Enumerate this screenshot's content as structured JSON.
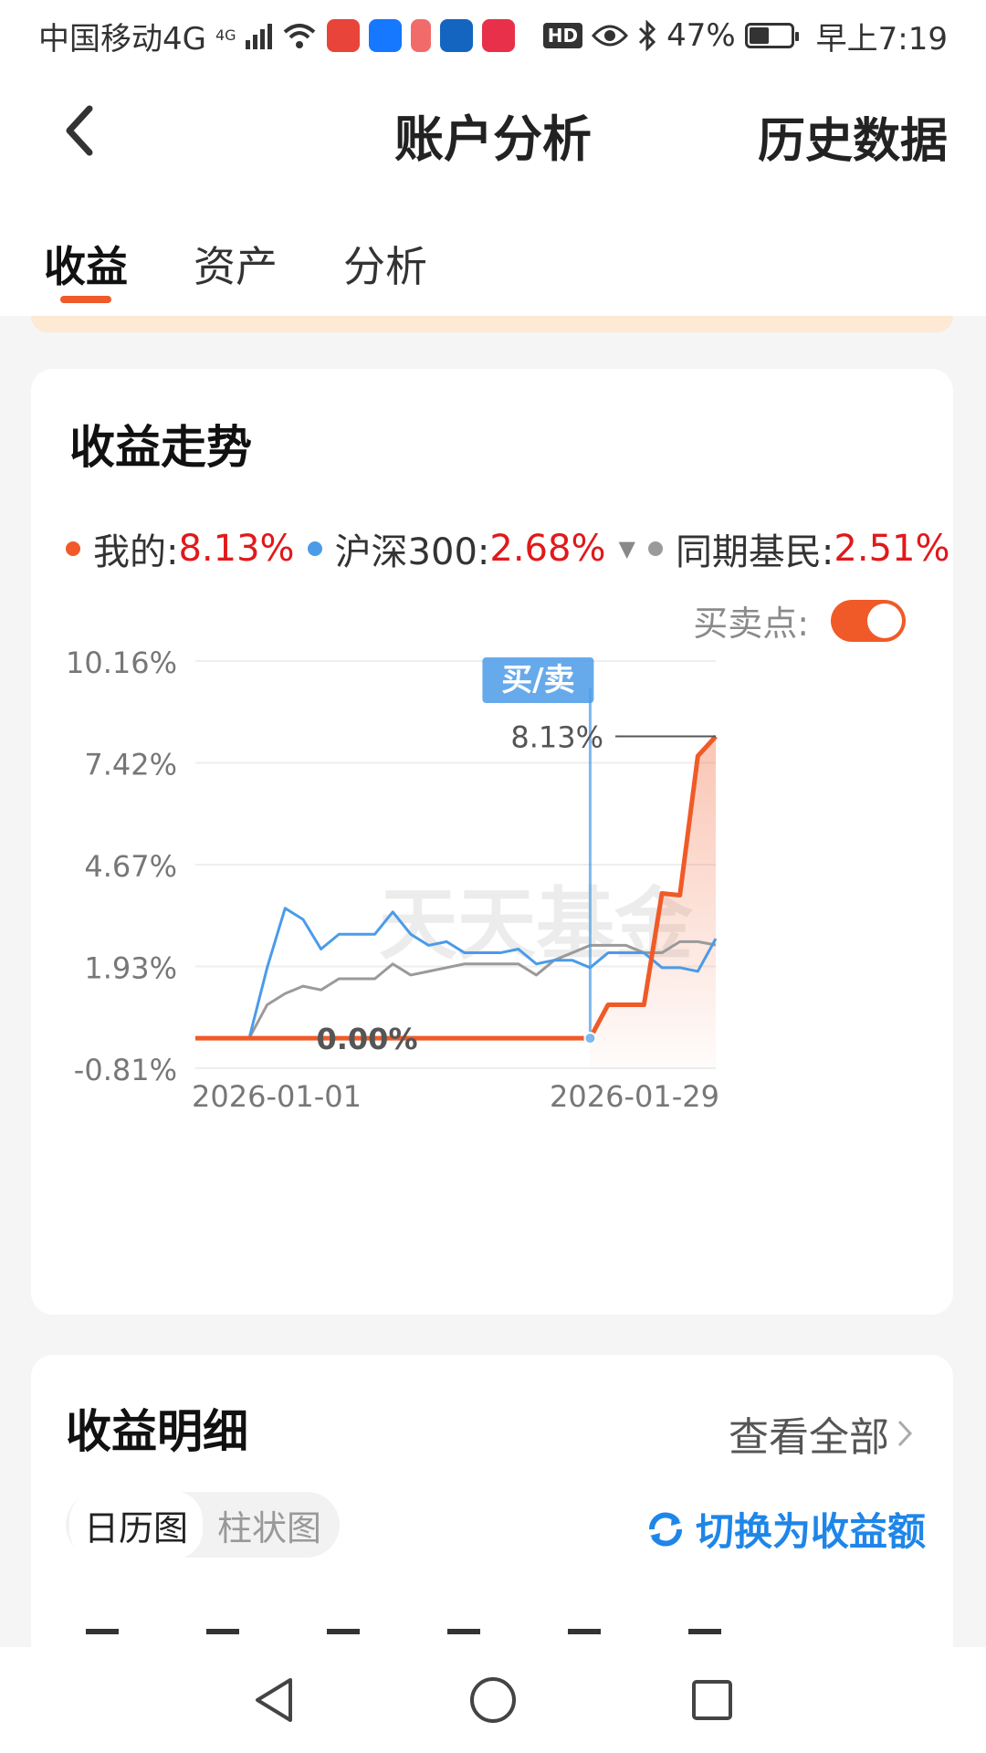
{
  "status_bar": {
    "carrier": "中国移动4G",
    "network_badge": "4G",
    "battery": "47%",
    "time": "早上7:19",
    "hd": "HD"
  },
  "header": {
    "title": "账户分析",
    "history": "历史数据",
    "back_icon": "chevron-left-icon"
  },
  "tabs": [
    {
      "label": "收益",
      "active": true
    },
    {
      "label": "资产",
      "active": false
    },
    {
      "label": "分析",
      "active": false
    }
  ],
  "chart_card": {
    "title": "收益走势",
    "legend": [
      {
        "name": "我的:",
        "value": "8.13%",
        "color": "#f05a28"
      },
      {
        "name": "沪深300:",
        "value": "2.68%",
        "color": "#4b9be8"
      },
      {
        "name": "同期基民:",
        "value": "2.51%",
        "color": "#9a9a9a"
      }
    ],
    "buy_sell_label": "买卖点:",
    "buy_sell_on": true,
    "watermark": "天天基金",
    "marker_label": "买/卖",
    "last_value_label": "8.13%",
    "zero_label": "0.00%"
  },
  "chart_data": {
    "type": "line",
    "x_labels": [
      "2026-01-01",
      "2026-01-29"
    ],
    "y_ticks": [
      "10.16%",
      "7.42%",
      "4.67%",
      "1.93%",
      "-0.81%"
    ],
    "ylim": [
      -0.81,
      10.16
    ],
    "buy_sell_index": 22,
    "series": [
      {
        "name": "我的",
        "color": "#f05a28",
        "values": [
          0,
          0,
          0,
          0,
          0,
          0,
          0,
          0,
          0,
          0,
          0,
          0,
          0,
          0,
          0,
          0,
          0,
          0,
          0,
          0,
          0,
          0,
          0,
          0.9,
          0.9,
          0.9,
          3.9,
          3.85,
          7.6,
          8.13
        ]
      },
      {
        "name": "沪深300",
        "color": "#4b9be8",
        "values": [
          0,
          0,
          0,
          0,
          1.9,
          3.5,
          3.2,
          2.4,
          2.8,
          2.8,
          2.8,
          3.4,
          2.8,
          2.5,
          2.6,
          2.3,
          2.3,
          2.3,
          2.4,
          2.0,
          2.1,
          2.1,
          1.9,
          2.3,
          2.3,
          2.3,
          1.9,
          1.9,
          1.8,
          2.68
        ]
      },
      {
        "name": "同期基民",
        "color": "#9a9a9a",
        "values": [
          0,
          0,
          0,
          0,
          0.9,
          1.2,
          1.4,
          1.3,
          1.6,
          1.6,
          1.6,
          2.0,
          1.7,
          1.8,
          1.9,
          2.0,
          2.0,
          2.0,
          2.0,
          1.7,
          2.1,
          2.3,
          2.5,
          2.5,
          2.5,
          2.3,
          2.3,
          2.6,
          2.6,
          2.51
        ]
      }
    ]
  },
  "detail_card": {
    "title": "收益明细",
    "view_all": "查看全部",
    "segments": [
      {
        "label": "日历图",
        "active": true
      },
      {
        "label": "柱状图",
        "active": false
      }
    ],
    "switch_label": "切换为收益额"
  },
  "nav": {
    "back": "back-triangle-icon",
    "home": "home-circle-icon",
    "recents": "recents-square-icon"
  }
}
